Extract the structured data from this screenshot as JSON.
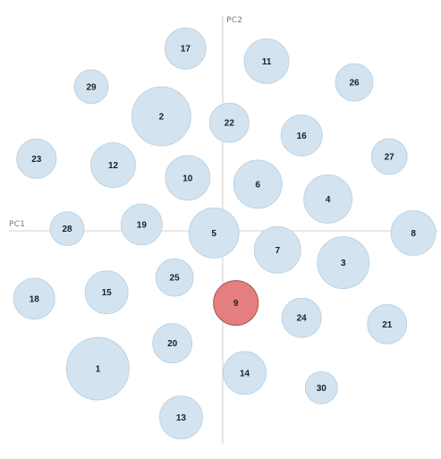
{
  "chart_data": {
    "type": "scatter",
    "xlabel": "PC1",
    "ylabel": "PC2",
    "xlim": [
      -100,
      100
    ],
    "ylim": [
      -100,
      100
    ],
    "grid": false,
    "colors": {
      "default_fill": "#d3e3ef",
      "default_stroke": "#b7cfe1",
      "highlight_fill": "#e57f7f",
      "highlight_stroke": "#a05454",
      "axis": "#cfcfcf"
    },
    "points": [
      {
        "label": "1",
        "x": -57,
        "y": -65,
        "r": 35,
        "highlight": false
      },
      {
        "label": "2",
        "x": -28,
        "y": 54,
        "r": 33,
        "highlight": false
      },
      {
        "label": "3",
        "x": 55,
        "y": -15,
        "r": 29,
        "highlight": false
      },
      {
        "label": "4",
        "x": 48,
        "y": 15,
        "r": 27,
        "highlight": false
      },
      {
        "label": "5",
        "x": -4,
        "y": -1,
        "r": 28,
        "highlight": false
      },
      {
        "label": "6",
        "x": 16,
        "y": 22,
        "r": 27,
        "highlight": false
      },
      {
        "label": "7",
        "x": 25,
        "y": -9,
        "r": 26,
        "highlight": false
      },
      {
        "label": "8",
        "x": 87,
        "y": -1,
        "r": 25,
        "highlight": false
      },
      {
        "label": "9",
        "x": 6,
        "y": -34,
        "r": 25,
        "highlight": true
      },
      {
        "label": "10",
        "x": -16,
        "y": 25,
        "r": 25,
        "highlight": false
      },
      {
        "label": "11",
        "x": 20,
        "y": 80,
        "r": 25,
        "highlight": false
      },
      {
        "label": "12",
        "x": -50,
        "y": 31,
        "r": 25,
        "highlight": false
      },
      {
        "label": "13",
        "x": -19,
        "y": -88,
        "r": 24,
        "highlight": false
      },
      {
        "label": "14",
        "x": 10,
        "y": -67,
        "r": 24,
        "highlight": false
      },
      {
        "label": "15",
        "x": -53,
        "y": -29,
        "r": 24,
        "highlight": false
      },
      {
        "label": "16",
        "x": 36,
        "y": 45,
        "r": 23,
        "highlight": false
      },
      {
        "label": "17",
        "x": -17,
        "y": 86,
        "r": 23,
        "highlight": false
      },
      {
        "label": "18",
        "x": -86,
        "y": -32,
        "r": 23,
        "highlight": false
      },
      {
        "label": "19",
        "x": -37,
        "y": 3,
        "r": 23,
        "highlight": false
      },
      {
        "label": "20",
        "x": -23,
        "y": -53,
        "r": 22,
        "highlight": false
      },
      {
        "label": "21",
        "x": 75,
        "y": -44,
        "r": 22,
        "highlight": false
      },
      {
        "label": "22",
        "x": 3,
        "y": 51,
        "r": 22,
        "highlight": false
      },
      {
        "label": "23",
        "x": -85,
        "y": 34,
        "r": 22,
        "highlight": false
      },
      {
        "label": "24",
        "x": 36,
        "y": -41,
        "r": 22,
        "highlight": false
      },
      {
        "label": "25",
        "x": -22,
        "y": -22,
        "r": 21,
        "highlight": false
      },
      {
        "label": "26",
        "x": 60,
        "y": 70,
        "r": 21,
        "highlight": false
      },
      {
        "label": "27",
        "x": 76,
        "y": 35,
        "r": 20,
        "highlight": false
      },
      {
        "label": "28",
        "x": -71,
        "y": 1,
        "r": 19,
        "highlight": false
      },
      {
        "label": "29",
        "x": -60,
        "y": 68,
        "r": 19,
        "highlight": false
      },
      {
        "label": "30",
        "x": 45,
        "y": -74,
        "r": 18,
        "highlight": false
      }
    ]
  }
}
